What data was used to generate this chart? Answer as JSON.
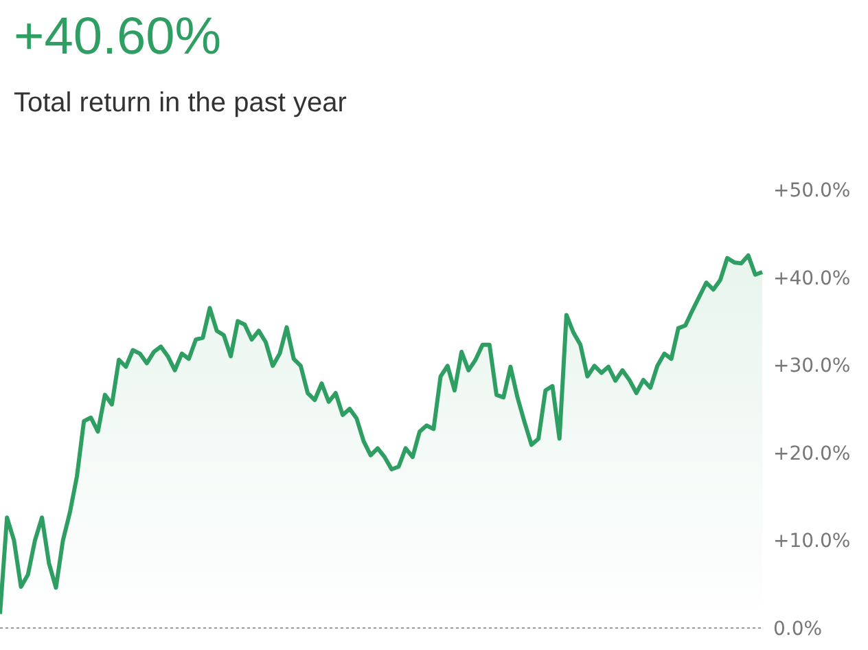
{
  "chart_data": {
    "type": "area",
    "title": "+40.60%",
    "subtitle": "Total return in the past year",
    "categories": [
      null,
      null,
      null,
      null,
      null,
      null,
      null,
      null,
      null,
      null,
      null,
      null,
      null,
      null,
      null,
      null,
      null,
      null,
      null,
      null,
      null,
      null,
      null,
      null,
      null,
      null,
      null,
      null,
      null,
      null,
      null,
      null,
      null,
      null,
      null,
      null,
      null,
      null,
      null,
      null,
      null,
      null,
      null,
      null,
      null,
      null,
      null,
      null,
      null,
      null,
      null,
      null,
      null,
      null,
      null,
      null,
      null,
      null,
      null,
      null,
      null,
      null,
      null,
      null,
      null,
      null,
      null,
      null,
      null,
      null,
      null,
      null,
      null,
      null,
      null,
      null,
      null,
      null,
      null,
      null,
      null,
      null,
      null,
      null,
      null,
      null,
      null,
      null,
      null,
      null,
      null,
      null,
      null,
      null,
      null,
      null,
      null,
      null,
      null,
      null,
      null,
      null,
      null,
      null,
      null,
      null,
      null,
      null,
      null,
      null
    ],
    "series": [
      {
        "color": "#2e9e63",
        "values": [
          1.6,
          12.6,
          10,
          4.7,
          6.1,
          10,
          12.6,
          7.4,
          4.6,
          10,
          13.2,
          17.3,
          23.6,
          24,
          22.4,
          26.6,
          25.5,
          30.6,
          29.8,
          31.7,
          31.3,
          30.2,
          31.5,
          32.1,
          31,
          29.4,
          31.3,
          30.7,
          32.9,
          33.1,
          36.5,
          33.9,
          33.4,
          31,
          35,
          34.6,
          32.9,
          33.9,
          32.6,
          29.9,
          31.3,
          34.3,
          30.7,
          29.9,
          26.8,
          26,
          27.9,
          25.8,
          26.8,
          24.3,
          25,
          23.9,
          21.3,
          19.7,
          20.5,
          19.5,
          18.1,
          18.4,
          20.5,
          19.5,
          22.4,
          23.1,
          22.7,
          28.7,
          29.9,
          27.1,
          31.5,
          29.4,
          30.6,
          32.3,
          32.3,
          26.6,
          26.3,
          29.8,
          26.3,
          23.5,
          20.9,
          21.6,
          27.1,
          27.6,
          21.6,
          35.7,
          33.7,
          32.3,
          28.7,
          29.9,
          29.1,
          29.8,
          28.2,
          29.4,
          28.3,
          26.8,
          28.3,
          27.4,
          29.9,
          31.3,
          30.7,
          34.2,
          34.5,
          36.2,
          37.8,
          39.4,
          38.6,
          39.7,
          42.2,
          41.7,
          41.6,
          42.5,
          40.3,
          40.6
        ]
      }
    ],
    "ylim": [
      0,
      50
    ],
    "yticks": [
      {
        "value": 0,
        "label": "0.0%"
      },
      {
        "value": 10,
        "label": "+10.0%"
      },
      {
        "value": 20,
        "label": "+20.0%"
      },
      {
        "value": 30,
        "label": "+30.0%"
      },
      {
        "value": 40,
        "label": "+40.0%"
      },
      {
        "value": 50,
        "label": "+50.0%"
      }
    ],
    "tick_labels": "y",
    "line_style": "solid"
  }
}
